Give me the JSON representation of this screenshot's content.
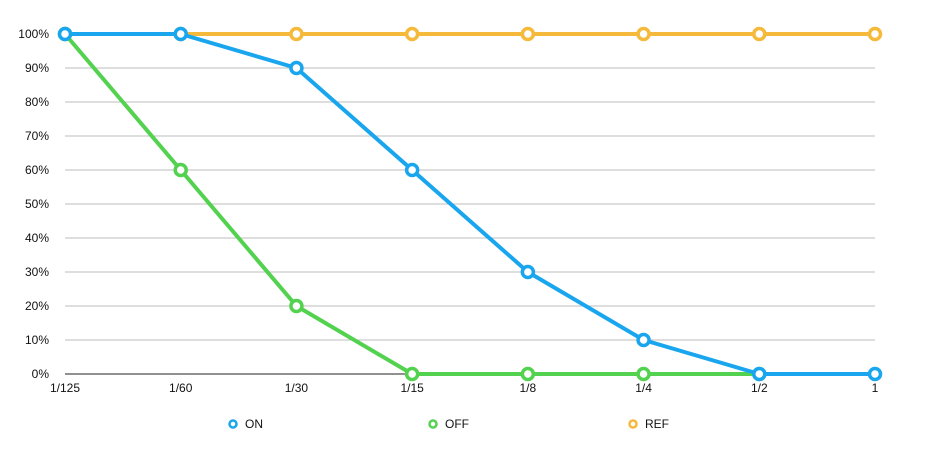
{
  "chart_data": {
    "type": "line",
    "title": "",
    "xlabel": "",
    "ylabel": "",
    "categories": [
      "1/125",
      "1/60",
      "1/30",
      "1/15",
      "1/8",
      "1/4",
      "1/2",
      "1"
    ],
    "ylim": [
      0,
      100
    ],
    "yticks": [
      "0%",
      "10%",
      "20%",
      "30%",
      "40%",
      "50%",
      "60%",
      "70%",
      "80%",
      "90%",
      "100%"
    ],
    "grid": true,
    "legend_position": "bottom",
    "series": [
      {
        "name": "ON",
        "color": "#1aa6ee",
        "values": [
          100,
          100,
          90,
          60,
          30,
          10,
          0,
          0
        ]
      },
      {
        "name": "OFF",
        "color": "#52d24e",
        "values": [
          100,
          60,
          20,
          0,
          0,
          0,
          0,
          null
        ]
      },
      {
        "name": "REF",
        "color": "#f5b93c",
        "values": [
          100,
          100,
          100,
          100,
          100,
          100,
          100,
          100
        ]
      }
    ],
    "draw_order": [
      "REF",
      "OFF",
      "ON"
    ]
  }
}
